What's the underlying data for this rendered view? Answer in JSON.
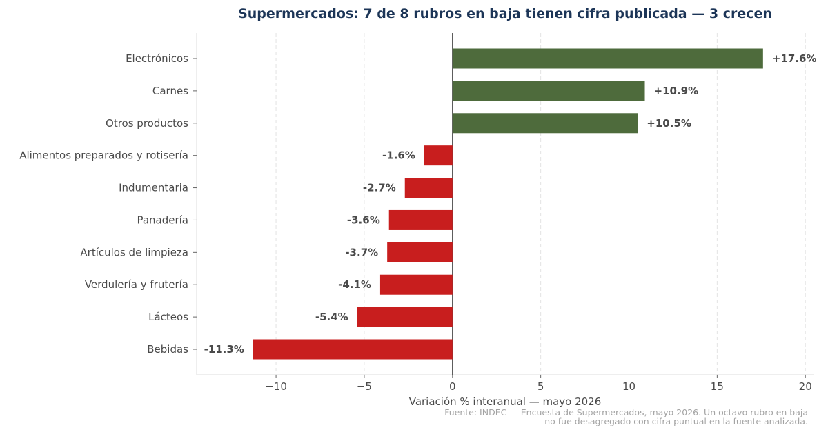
{
  "chart_data": {
    "type": "bar",
    "orientation": "horizontal",
    "title": "Supermercados: 7 de 8 rubros en baja tienen cifra publicada — 3 crecen",
    "xlabel": "Variación % interanual — mayo 2026",
    "ylabel": "",
    "xlim": [
      -14.5,
      20.5
    ],
    "xticks": [
      -10,
      -5,
      0,
      5,
      10,
      15,
      20
    ],
    "xtick_labels": [
      "−10",
      "−5",
      "0",
      "5",
      "10",
      "15",
      "20"
    ],
    "grid": "vertical dashed",
    "categories": [
      "Electrónicos",
      "Carnes",
      "Otros productos",
      "Alimentos preparados y rotisería",
      "Indumentaria",
      "Panadería",
      "Artículos de limpieza",
      "Verdulería y frutería",
      "Lácteos",
      "Bebidas"
    ],
    "values": [
      17.6,
      10.9,
      10.5,
      -1.6,
      -2.7,
      -3.6,
      -3.7,
      -4.1,
      -5.4,
      -11.3
    ],
    "value_labels": [
      "+17.6%",
      "+10.9%",
      "+10.5%",
      "-1.6%",
      "-2.7%",
      "-3.6%",
      "-3.7%",
      "-4.1%",
      "-5.4%",
      "-11.3%"
    ],
    "colors": {
      "positive": "#4e6b3c",
      "negative": "#c81e1e",
      "zero_line": "#444444",
      "grid": "#e3e3e3"
    },
    "source_lines": [
      "Fuente: INDEC — Encuesta de Supermercados, mayo 2026. Un octavo rubro en baja",
      "no fue desagregado con cifra puntual en la fuente analizada."
    ]
  }
}
